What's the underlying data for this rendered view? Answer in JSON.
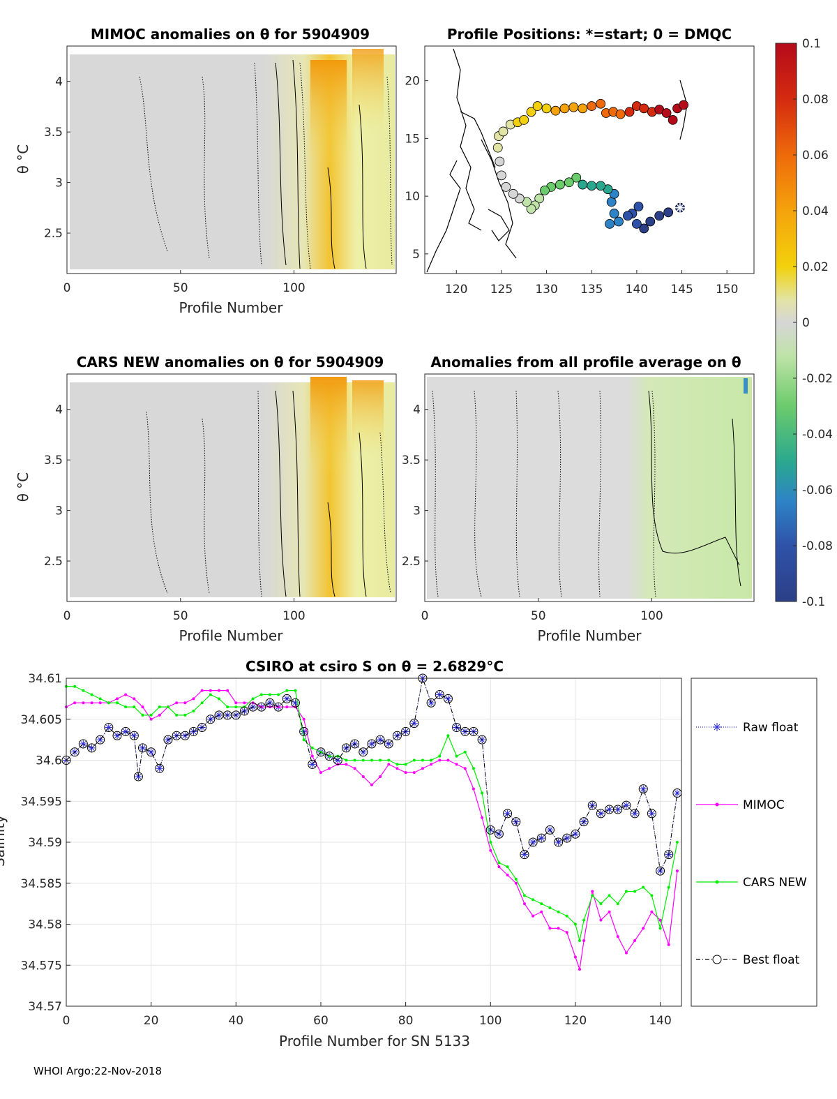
{
  "footer": "WHOI Argo:22-Nov-2018",
  "panels": {
    "mimoc": {
      "title": "MIMOC anomalies on θ  for 5904909",
      "ylabel": "θ °C",
      "xlabel": "Profile Number",
      "xticks": [
        "0",
        "50",
        "100"
      ],
      "yticks": [
        "2.5",
        "3",
        "3.5",
        "4"
      ]
    },
    "positions": {
      "title": "Profile Positions: *=start; 0 = DMQC",
      "xticks": [
        "120",
        "125",
        "130",
        "135",
        "140",
        "145",
        "150"
      ],
      "yticks": [
        "5",
        "10",
        "15",
        "20"
      ]
    },
    "cars": {
      "title": "CARS NEW anomalies on θ for 5904909",
      "ylabel": "θ °C",
      "xlabel": "Profile Number",
      "xticks": [
        "0",
        "50",
        "100"
      ],
      "yticks": [
        "2.5",
        "3",
        "3.5",
        "4"
      ]
    },
    "allavg": {
      "title": "Anomalies from all profile average on θ",
      "xlabel": "Profile Number",
      "xticks": [
        "0",
        "50",
        "100"
      ],
      "yticks": [
        "2.5",
        "3",
        "3.5",
        "4"
      ]
    },
    "colorbar": {
      "ticks": [
        "0.1",
        "0.08",
        "0.06",
        "0.04",
        "0.02",
        "0",
        "-0.02",
        "-0.04",
        "-0.06",
        "-0.08",
        "-0.1"
      ],
      "colors": [
        "#b50a1a",
        "#d42b10",
        "#ee6a0a",
        "#f5a30c",
        "#f2d10c",
        "#e2e4a6",
        "#d6d6d6",
        "#bfe3a8",
        "#6ccb6c",
        "#2aa88f",
        "#2e83c6",
        "#2f52a8",
        "#2c3f87"
      ]
    }
  },
  "chart_data": [
    {
      "type": "line",
      "title": "CSIRO at csiro S on θ = 2.6829°C",
      "xlabel": "Profile Number for SN 5133",
      "ylabel": "Salinity",
      "xlim": [
        0,
        145
      ],
      "ylim": [
        34.57,
        34.61
      ],
      "xticks": [
        "0",
        "20",
        "40",
        "60",
        "80",
        "100",
        "120",
        "140"
      ],
      "yticks": [
        "34.57",
        "34.575",
        "34.58",
        "34.585",
        "34.59",
        "34.595",
        "34.6",
        "34.605",
        "34.61"
      ],
      "series": [
        {
          "name": "Raw float",
          "color": "#2b2bd8",
          "style": "dotted-star",
          "x": [
            0,
            2,
            4,
            6,
            8,
            10,
            12,
            14,
            16,
            17,
            18,
            20,
            22,
            24,
            26,
            28,
            30,
            32,
            34,
            36,
            38,
            40,
            42,
            44,
            46,
            48,
            50,
            52,
            54,
            56,
            58,
            60,
            62,
            64,
            66,
            68,
            70,
            72,
            74,
            76,
            78,
            80,
            82,
            84,
            86,
            88,
            90,
            92,
            94,
            96,
            98,
            100,
            102,
            104,
            106,
            108,
            110,
            112,
            114,
            116,
            118,
            120,
            122,
            124,
            126,
            128,
            130,
            132,
            134,
            136,
            138,
            140,
            142,
            144
          ],
          "y": [
            34.6,
            34.601,
            34.602,
            34.6015,
            34.6025,
            34.604,
            34.603,
            34.6035,
            34.603,
            34.598,
            34.6015,
            34.601,
            34.599,
            34.6025,
            34.603,
            34.603,
            34.6035,
            34.604,
            34.605,
            34.6055,
            34.6055,
            34.6055,
            34.606,
            34.6065,
            34.6065,
            34.607,
            34.6065,
            34.6075,
            34.607,
            34.6035,
            34.5995,
            34.601,
            34.6005,
            34.6,
            34.6015,
            34.602,
            34.601,
            34.602,
            34.6025,
            34.602,
            34.603,
            34.6035,
            34.6045,
            34.61,
            34.607,
            34.608,
            34.6075,
            34.604,
            34.6035,
            34.6035,
            34.6025,
            34.5915,
            34.591,
            34.5935,
            34.5925,
            34.5885,
            34.59,
            34.5905,
            34.5915,
            34.59,
            34.5905,
            34.591,
            34.5925,
            34.5945,
            34.5935,
            34.594,
            34.594,
            34.5945,
            34.5935,
            34.5965,
            34.5935,
            34.5865,
            34.5885,
            34.596
          ]
        },
        {
          "name": "MIMOC",
          "color": "#ff00ff",
          "style": "line-dot",
          "x": [
            0,
            2,
            4,
            6,
            8,
            10,
            12,
            14,
            16,
            18,
            20,
            22,
            24,
            26,
            28,
            30,
            32,
            34,
            36,
            38,
            40,
            42,
            44,
            46,
            48,
            50,
            52,
            54,
            56,
            58,
            60,
            62,
            64,
            66,
            68,
            70,
            72,
            74,
            76,
            78,
            80,
            82,
            84,
            86,
            88,
            90,
            92,
            94,
            96,
            98,
            100,
            102,
            104,
            106,
            108,
            110,
            112,
            114,
            116,
            118,
            120,
            121,
            122,
            124,
            126,
            128,
            130,
            132,
            134,
            136,
            138,
            140,
            142,
            144
          ],
          "y": [
            34.6065,
            34.607,
            34.607,
            34.607,
            34.607,
            34.607,
            34.6075,
            34.608,
            34.6075,
            34.6065,
            34.605,
            34.6055,
            34.6065,
            34.607,
            34.607,
            34.6075,
            34.6085,
            34.6085,
            34.6085,
            34.6085,
            34.607,
            34.607,
            34.607,
            34.6065,
            34.6065,
            34.6065,
            34.6065,
            34.6065,
            34.605,
            34.6005,
            34.5985,
            34.599,
            34.5995,
            34.5995,
            34.599,
            34.598,
            34.597,
            34.598,
            34.5995,
            34.599,
            34.5985,
            34.5985,
            34.599,
            34.5995,
            34.6,
            34.6,
            34.5995,
            34.599,
            34.5965,
            34.593,
            34.589,
            34.587,
            34.586,
            34.585,
            34.5825,
            34.581,
            34.5815,
            34.5795,
            34.5795,
            34.579,
            34.576,
            34.5745,
            34.578,
            34.584,
            34.5805,
            34.5815,
            34.5785,
            34.5765,
            34.578,
            34.5795,
            34.5815,
            34.5805,
            34.5775,
            34.5865
          ]
        },
        {
          "name": "CARS NEW",
          "color": "#00ee00",
          "style": "line-dot",
          "x": [
            0,
            2,
            4,
            6,
            8,
            10,
            12,
            14,
            16,
            18,
            20,
            22,
            24,
            26,
            28,
            30,
            32,
            34,
            36,
            38,
            40,
            42,
            44,
            46,
            48,
            50,
            52,
            54,
            56,
            58,
            60,
            62,
            64,
            66,
            68,
            70,
            72,
            74,
            76,
            78,
            80,
            82,
            84,
            86,
            88,
            90,
            92,
            94,
            96,
            98,
            100,
            102,
            104,
            106,
            108,
            110,
            112,
            114,
            116,
            118,
            120,
            121,
            122,
            124,
            126,
            128,
            130,
            132,
            134,
            136,
            138,
            140,
            142,
            144
          ],
          "y": [
            34.609,
            34.609,
            34.6085,
            34.608,
            34.6075,
            34.607,
            34.607,
            34.6065,
            34.6065,
            34.6055,
            34.6055,
            34.6065,
            34.6065,
            34.6055,
            34.6055,
            34.606,
            34.607,
            34.608,
            34.6075,
            34.6065,
            34.6065,
            34.6065,
            34.6075,
            34.608,
            34.608,
            34.608,
            34.6085,
            34.6085,
            34.6025,
            34.6015,
            34.601,
            34.6005,
            34.6005,
            34.6,
            34.6,
            34.6,
            34.6,
            34.6,
            34.6,
            34.5995,
            34.5995,
            34.6,
            34.6,
            34.6,
            34.6005,
            34.603,
            34.6005,
            34.601,
            34.599,
            34.596,
            34.59,
            34.5875,
            34.587,
            34.5855,
            34.5835,
            34.583,
            34.5825,
            34.582,
            34.5815,
            34.581,
            34.58,
            34.578,
            34.5805,
            34.5835,
            34.5825,
            34.5835,
            34.5825,
            34.584,
            34.584,
            34.5845,
            34.5835,
            34.5795,
            34.5845,
            34.59
          ]
        },
        {
          "name": "Best float",
          "color": "#000000",
          "style": "dashdot-circle",
          "x": [
            0,
            2,
            4,
            6,
            8,
            10,
            12,
            14,
            16,
            17,
            18,
            20,
            22,
            24,
            26,
            28,
            30,
            32,
            34,
            36,
            38,
            40,
            42,
            44,
            46,
            48,
            50,
            52,
            54,
            56,
            58,
            60,
            62,
            64,
            66,
            68,
            70,
            72,
            74,
            76,
            78,
            80,
            82,
            84,
            86,
            88,
            90,
            92,
            94,
            96,
            98,
            100,
            102,
            104,
            106,
            108,
            110,
            112,
            114,
            116,
            118,
            120,
            122,
            124,
            126,
            128,
            130,
            132,
            134,
            136,
            138,
            140,
            142,
            144
          ],
          "y": [
            34.6,
            34.601,
            34.602,
            34.6015,
            34.6025,
            34.604,
            34.603,
            34.6035,
            34.603,
            34.598,
            34.6015,
            34.601,
            34.599,
            34.6025,
            34.603,
            34.603,
            34.6035,
            34.604,
            34.605,
            34.6055,
            34.6055,
            34.6055,
            34.606,
            34.6065,
            34.6065,
            34.607,
            34.6065,
            34.6075,
            34.607,
            34.6035,
            34.5995,
            34.601,
            34.6005,
            34.6,
            34.6015,
            34.602,
            34.601,
            34.602,
            34.6025,
            34.602,
            34.603,
            34.6035,
            34.6045,
            34.61,
            34.607,
            34.608,
            34.6075,
            34.604,
            34.6035,
            34.6035,
            34.6025,
            34.5915,
            34.591,
            34.5935,
            34.5925,
            34.5885,
            34.59,
            34.5905,
            34.5915,
            34.59,
            34.5905,
            34.591,
            34.5925,
            34.5945,
            34.5935,
            34.594,
            34.594,
            34.5945,
            34.5935,
            34.5965,
            34.5935,
            34.5865,
            34.5885,
            34.596
          ]
        }
      ]
    }
  ]
}
